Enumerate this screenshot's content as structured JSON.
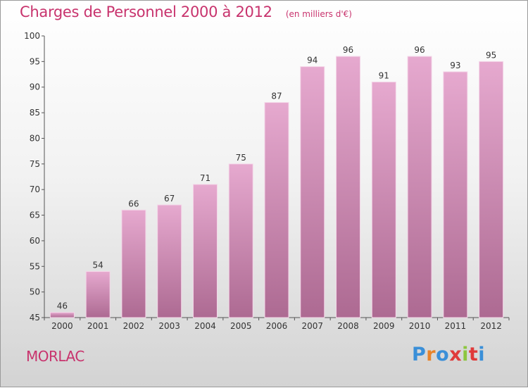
{
  "header": {
    "title": "Charges de Personnel 2000 à 2012",
    "subtitle": "(en milliers d'€)"
  },
  "footer": {
    "place": "MORLAC",
    "brand": "Proxiti",
    "brand_colors": [
      "#3a8fd8",
      "#e8832a",
      "#3a8fd8",
      "#e03a3a",
      "#8cc63f",
      "#e03a3a",
      "#3a8fd8"
    ]
  },
  "colors": {
    "title": "#c8336d",
    "bar_top": "#e6a9cf",
    "bar_bottom": "#ad6a92"
  },
  "chart_data": {
    "type": "bar",
    "title": "Charges de Personnel 2000 à 2012",
    "subtitle": "(en milliers d'€)",
    "categories": [
      "2000",
      "2001",
      "2002",
      "2003",
      "2004",
      "2005",
      "2006",
      "2007",
      "2008",
      "2009",
      "2010",
      "2011",
      "2012"
    ],
    "values": [
      46,
      54,
      66,
      67,
      71,
      75,
      87,
      94,
      96,
      91,
      96,
      93,
      95
    ],
    "ylim": [
      45,
      100
    ],
    "yticks": [
      45,
      50,
      55,
      60,
      65,
      70,
      75,
      80,
      85,
      90,
      95,
      100
    ],
    "grid": false,
    "legend": false
  }
}
